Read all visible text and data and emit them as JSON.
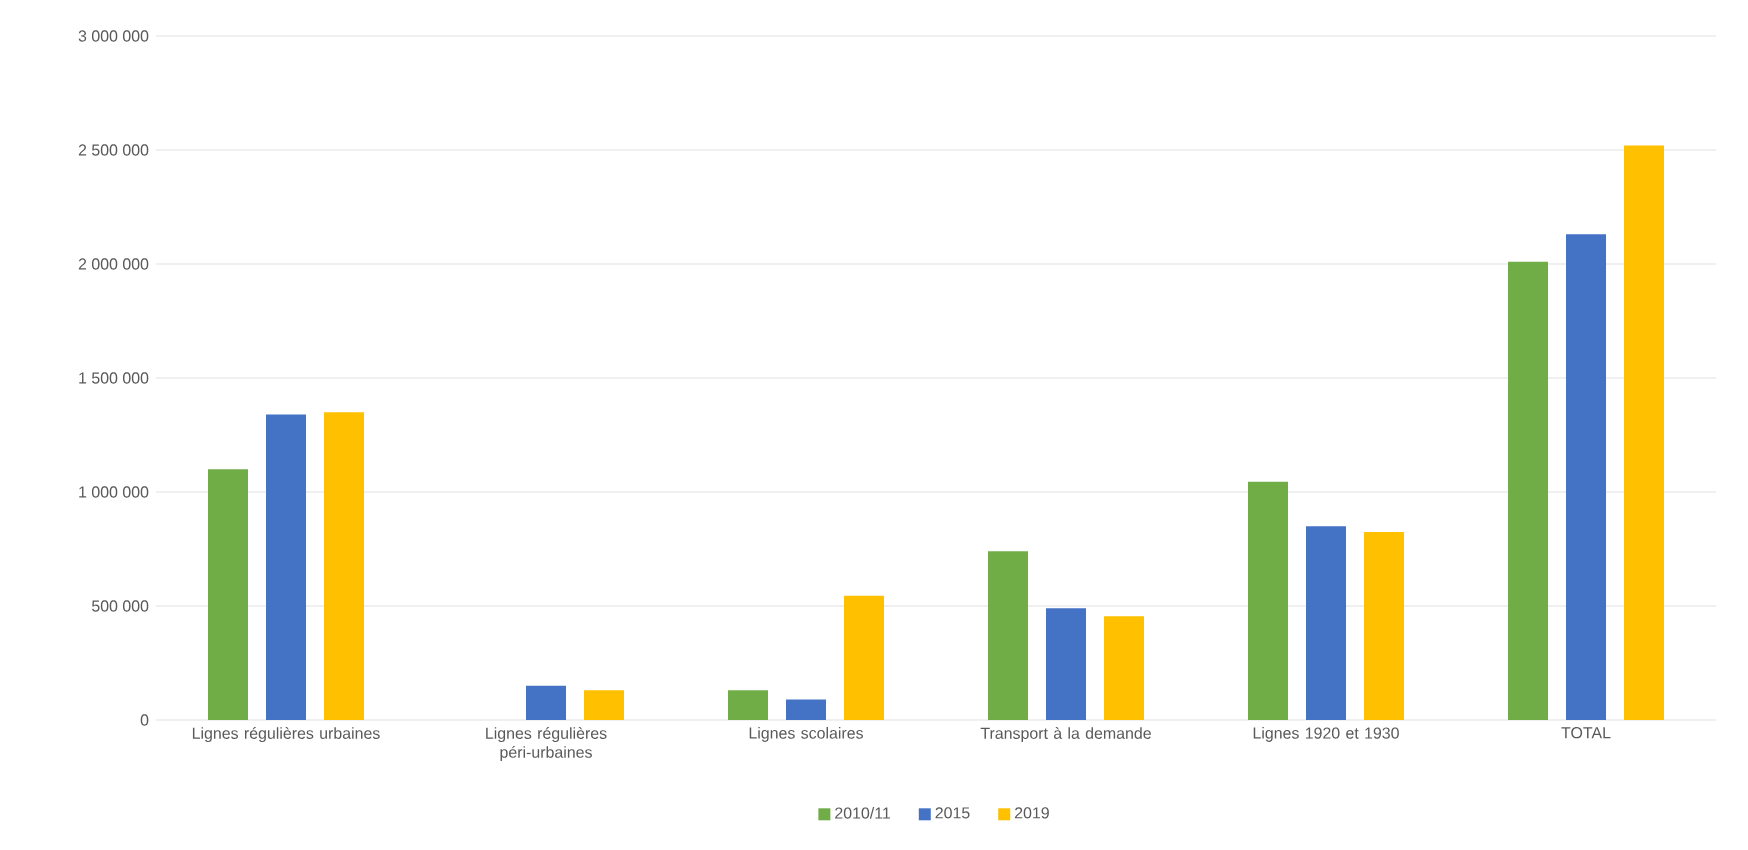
{
  "chart_data": {
    "type": "bar",
    "categories": [
      "Lignes régulières urbaines",
      "Lignes régulières péri-urbaines",
      "Lignes scolaires",
      "Transport à la demande",
      "Lignes 1920 et 1930",
      "TOTAL"
    ],
    "series": [
      {
        "name": "2010/11",
        "color": "#70ad47",
        "values": [
          1100000,
          null,
          130000,
          740000,
          1045000,
          2010000
        ]
      },
      {
        "name": "2015",
        "color": "#4472c4",
        "values": [
          1340000,
          150000,
          90000,
          490000,
          850000,
          2130000
        ]
      },
      {
        "name": "2019",
        "color": "#ffc000",
        "values": [
          1350000,
          130000,
          545000,
          455000,
          825000,
          2520000
        ]
      }
    ],
    "ylim": [
      0,
      3000000
    ],
    "yticks": [
      0,
      {
        "value": 500000,
        "label": "500 000"
      },
      {
        "value": 1000000,
        "label": "1 000 000"
      },
      {
        "value": 1500000,
        "label": "1 500 000"
      },
      {
        "value": 2000000,
        "label": "2 000 000"
      },
      {
        "value": 2500000,
        "label": "2 500 000"
      },
      {
        "value": 3000000,
        "label": "3 000 000"
      }
    ],
    "grid": "y",
    "legend": "bottom"
  }
}
